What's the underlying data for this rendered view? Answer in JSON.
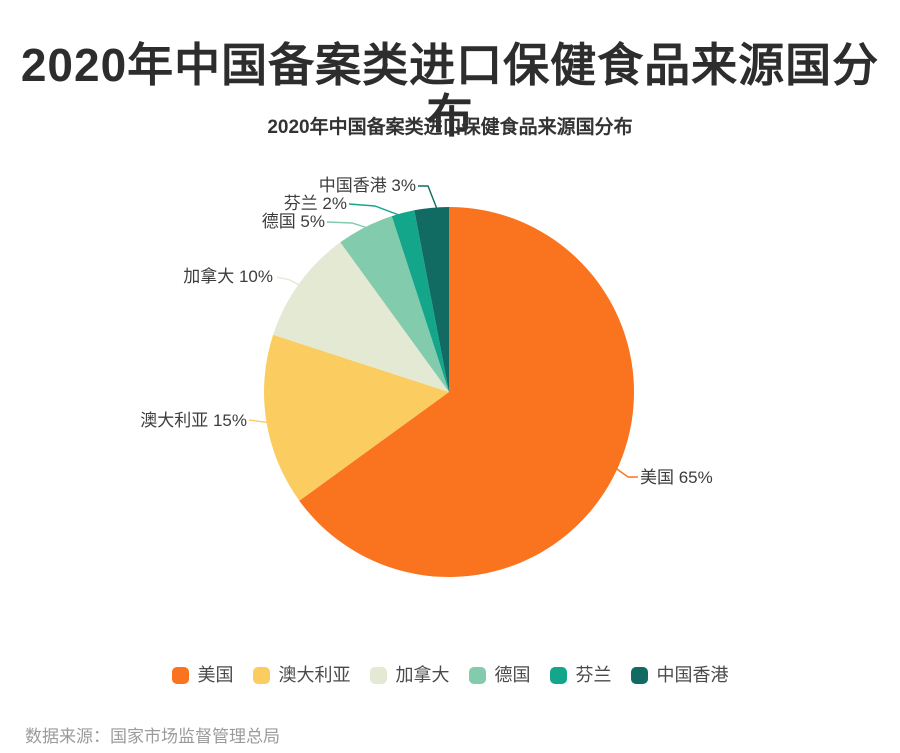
{
  "page": {
    "main_title": "2020年中国备案类进口保健食品来源国分布",
    "source_note": "数据来源：国家市场监督管理总局"
  },
  "chart_data": {
    "type": "pie",
    "title": "2020年中国备案类进口保健食品来源国分布",
    "categories": [
      "美国",
      "澳大利亚",
      "加拿大",
      "德国",
      "芬兰",
      "中国香港"
    ],
    "values": [
      65,
      15,
      10,
      5,
      2,
      3
    ],
    "unit": "%",
    "colors": [
      "#FA731E",
      "#FBCD60",
      "#E3E9D3",
      "#82CBAD",
      "#14A68B",
      "#116B63"
    ],
    "slice_labels": [
      "美国 65%",
      "澳大利亚 15%",
      "加拿大 10%",
      "德国 5%",
      "芬兰 2%",
      "中国香港 3%"
    ],
    "legend": [
      "美国",
      "澳大利亚",
      "加拿大",
      "德国",
      "芬兰",
      "中国香港"
    ],
    "legend_position": "bottom",
    "start_angle_deg": 0,
    "direction": "clockwise"
  }
}
